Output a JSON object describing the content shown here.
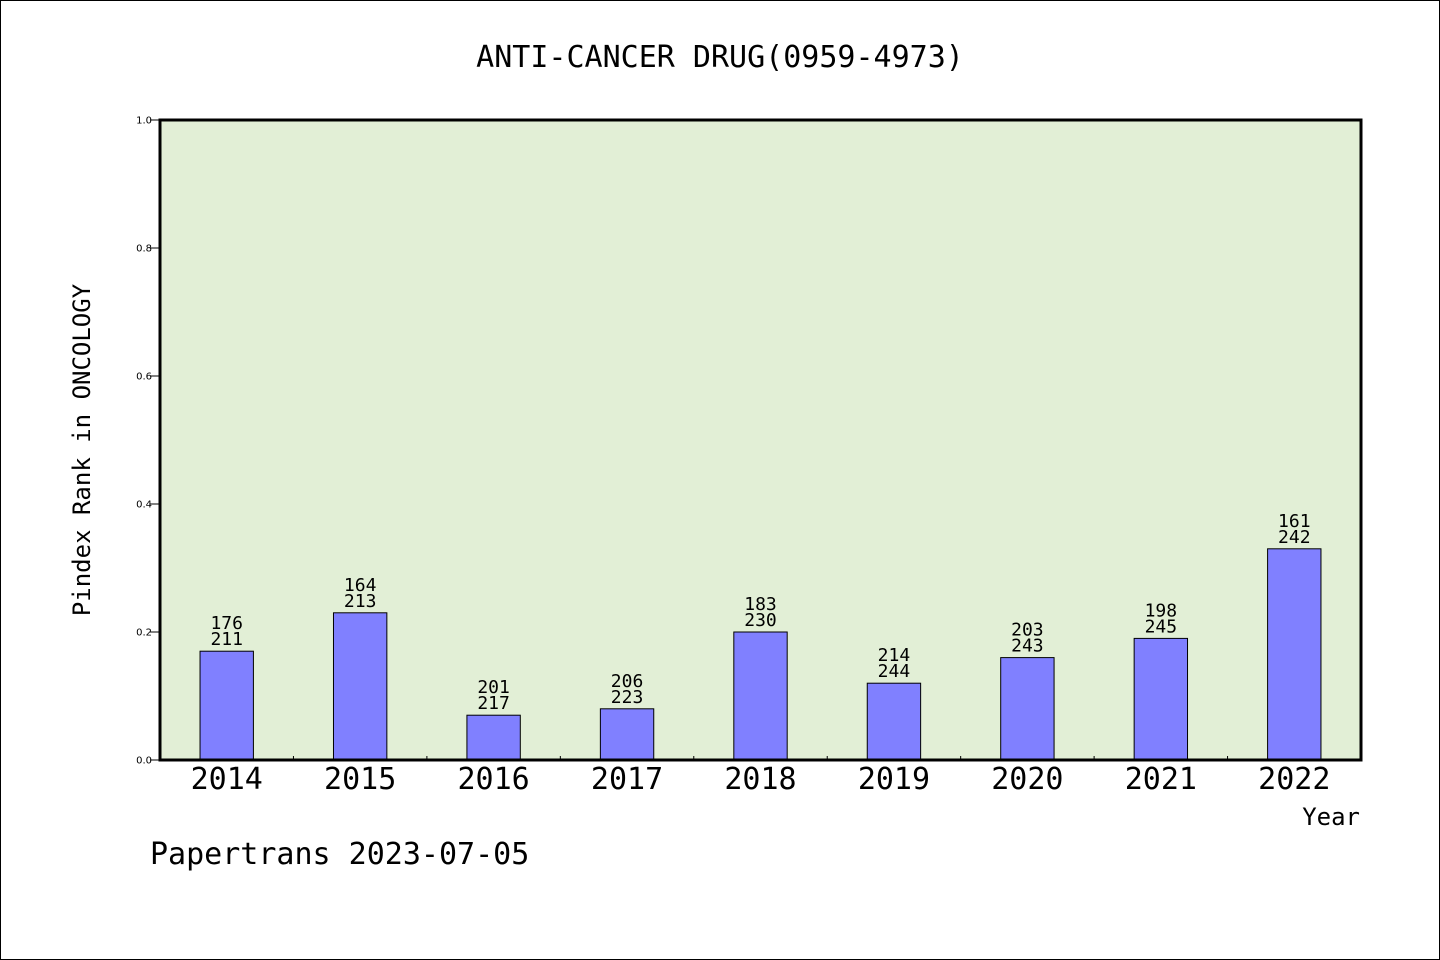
{
  "chart_data": {
    "type": "bar",
    "title": "ANTI-CANCER DRUG(0959-4973)",
    "xlabel": "Year",
    "ylabel": "Pindex Rank in ONCOLOGY",
    "ylim": [
      0,
      1.0
    ],
    "yticks": [
      "0.0",
      "0.2",
      "0.4",
      "0.6",
      "0.8",
      "1.0"
    ],
    "categories": [
      "2014",
      "2015",
      "2016",
      "2017",
      "2018",
      "2019",
      "2020",
      "2021",
      "2022"
    ],
    "values": [
      0.17,
      0.23,
      0.07,
      0.08,
      0.2,
      0.12,
      0.16,
      0.19,
      0.33
    ],
    "labels_top": [
      "176",
      "164",
      "201",
      "206",
      "183",
      "214",
      "203",
      "198",
      "161"
    ],
    "labels_bottom": [
      "211",
      "213",
      "217",
      "223",
      "230",
      "244",
      "243",
      "245",
      "242"
    ],
    "grid": false,
    "colors": {
      "plot_background": "#e2efd6",
      "bar_fill": "#8080ff",
      "bar_stroke": "#000000"
    }
  },
  "footer": "Papertrans 2023-07-05"
}
